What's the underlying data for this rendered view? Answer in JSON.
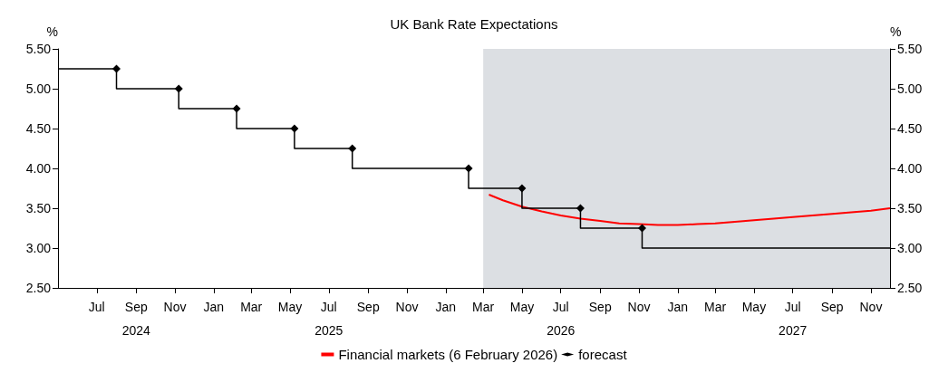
{
  "chart_data": {
    "type": "line",
    "title": "UK Bank Rate Expectations",
    "ylabel": "%",
    "y2label": "%",
    "xlim": [
      "2024-05-01",
      "2027-12-01"
    ],
    "xticks": [
      {
        "value": "2024-07-01",
        "label": "Jul"
      },
      {
        "value": "2024-09-01",
        "label": "Sep\n2024"
      },
      {
        "value": "2024-11-01",
        "label": "Nov"
      },
      {
        "value": "2025-01-01",
        "label": "Jan"
      },
      {
        "value": "2025-03-01",
        "label": "Mar"
      },
      {
        "value": "2025-05-01",
        "label": "May"
      },
      {
        "value": "2025-07-01",
        "label": "Jul\n2025"
      },
      {
        "value": "2025-09-01",
        "label": "Sep"
      },
      {
        "value": "2025-11-01",
        "label": "Nov"
      },
      {
        "value": "2026-01-01",
        "label": "Jan"
      },
      {
        "value": "2026-03-01",
        "label": "Mar"
      },
      {
        "value": "2026-05-01",
        "label": "May"
      },
      {
        "value": "2026-07-01",
        "label": "Jul\n2026"
      },
      {
        "value": "2026-09-01",
        "label": "Sep"
      },
      {
        "value": "2026-11-01",
        "label": "Nov"
      },
      {
        "value": "2027-01-01",
        "label": "Jan"
      },
      {
        "value": "2027-03-01",
        "label": "Mar"
      },
      {
        "value": "2027-05-01",
        "label": "May"
      },
      {
        "value": "2027-07-01",
        "label": "Jul\n2027"
      },
      {
        "value": "2027-09-01",
        "label": "Sep"
      },
      {
        "value": "2027-11-01",
        "label": "Nov"
      }
    ],
    "ylim": [
      2.5,
      5.5
    ],
    "yticks": [
      {
        "value": 2.5,
        "label": "2.50"
      },
      {
        "value": 3,
        "label": "3.00"
      },
      {
        "value": 3.5,
        "label": "3.50"
      },
      {
        "value": 4,
        "label": "4.00"
      },
      {
        "value": 4.5,
        "label": "4.50"
      },
      {
        "value": 5,
        "label": "5.00"
      },
      {
        "value": 5.5,
        "label": "5.50"
      }
    ],
    "y2lim": [
      2.5,
      5.5
    ],
    "y2ticks": [
      {
        "value": 2.5,
        "label": "2.50"
      },
      {
        "value": 3,
        "label": "3.00"
      },
      {
        "value": 3.5,
        "label": "3.50"
      },
      {
        "value": 4,
        "label": "4.00"
      },
      {
        "value": 4.5,
        "label": "4.50"
      },
      {
        "value": 5,
        "label": "5.00"
      },
      {
        "value": 5.5,
        "label": "5.50"
      }
    ],
    "grid": false,
    "legend": "bottom",
    "bands": [
      {
        "axis": "x",
        "from": "2026-03-01",
        "to": "2027-12-01",
        "color": "#dcdfe3"
      }
    ],
    "series": [
      {
        "name": "Financial markets (6 February 2026)",
        "color": "#ff0000",
        "marker": "none",
        "x": [
          "2026-03-10",
          "2026-04-01",
          "2026-05-01",
          "2026-06-01",
          "2026-07-01",
          "2026-08-01",
          "2026-09-01",
          "2026-10-01",
          "2026-11-01",
          "2026-12-01",
          "2027-01-01",
          "2027-02-01",
          "2027-03-01",
          "2027-04-01",
          "2027-05-01",
          "2027-06-01",
          "2027-07-01",
          "2027-08-01",
          "2027-09-01",
          "2027-10-01",
          "2027-11-01",
          "2027-12-01"
        ],
        "values": [
          3.67,
          3.6,
          3.52,
          3.46,
          3.41,
          3.37,
          3.34,
          3.31,
          3.3,
          3.29,
          3.29,
          3.3,
          3.31,
          3.33,
          3.35,
          3.37,
          3.39,
          3.41,
          3.43,
          3.45,
          3.47,
          3.5
        ]
      },
      {
        "name": "forecast",
        "type": "step",
        "color": "#000000",
        "marker": "diamond",
        "x": [
          "2024-05-01",
          "2024-08-01",
          "2024-11-07",
          "2025-02-06",
          "2025-05-08",
          "2025-08-07",
          "2026-02-06",
          "2026-05-01",
          "2026-08-01",
          "2026-11-06",
          "2027-12-01"
        ],
        "values": [
          5.25,
          5.25,
          5.0,
          4.75,
          4.5,
          4.25,
          4.0,
          3.75,
          3.5,
          3.25,
          3.0
        ]
      }
    ]
  }
}
